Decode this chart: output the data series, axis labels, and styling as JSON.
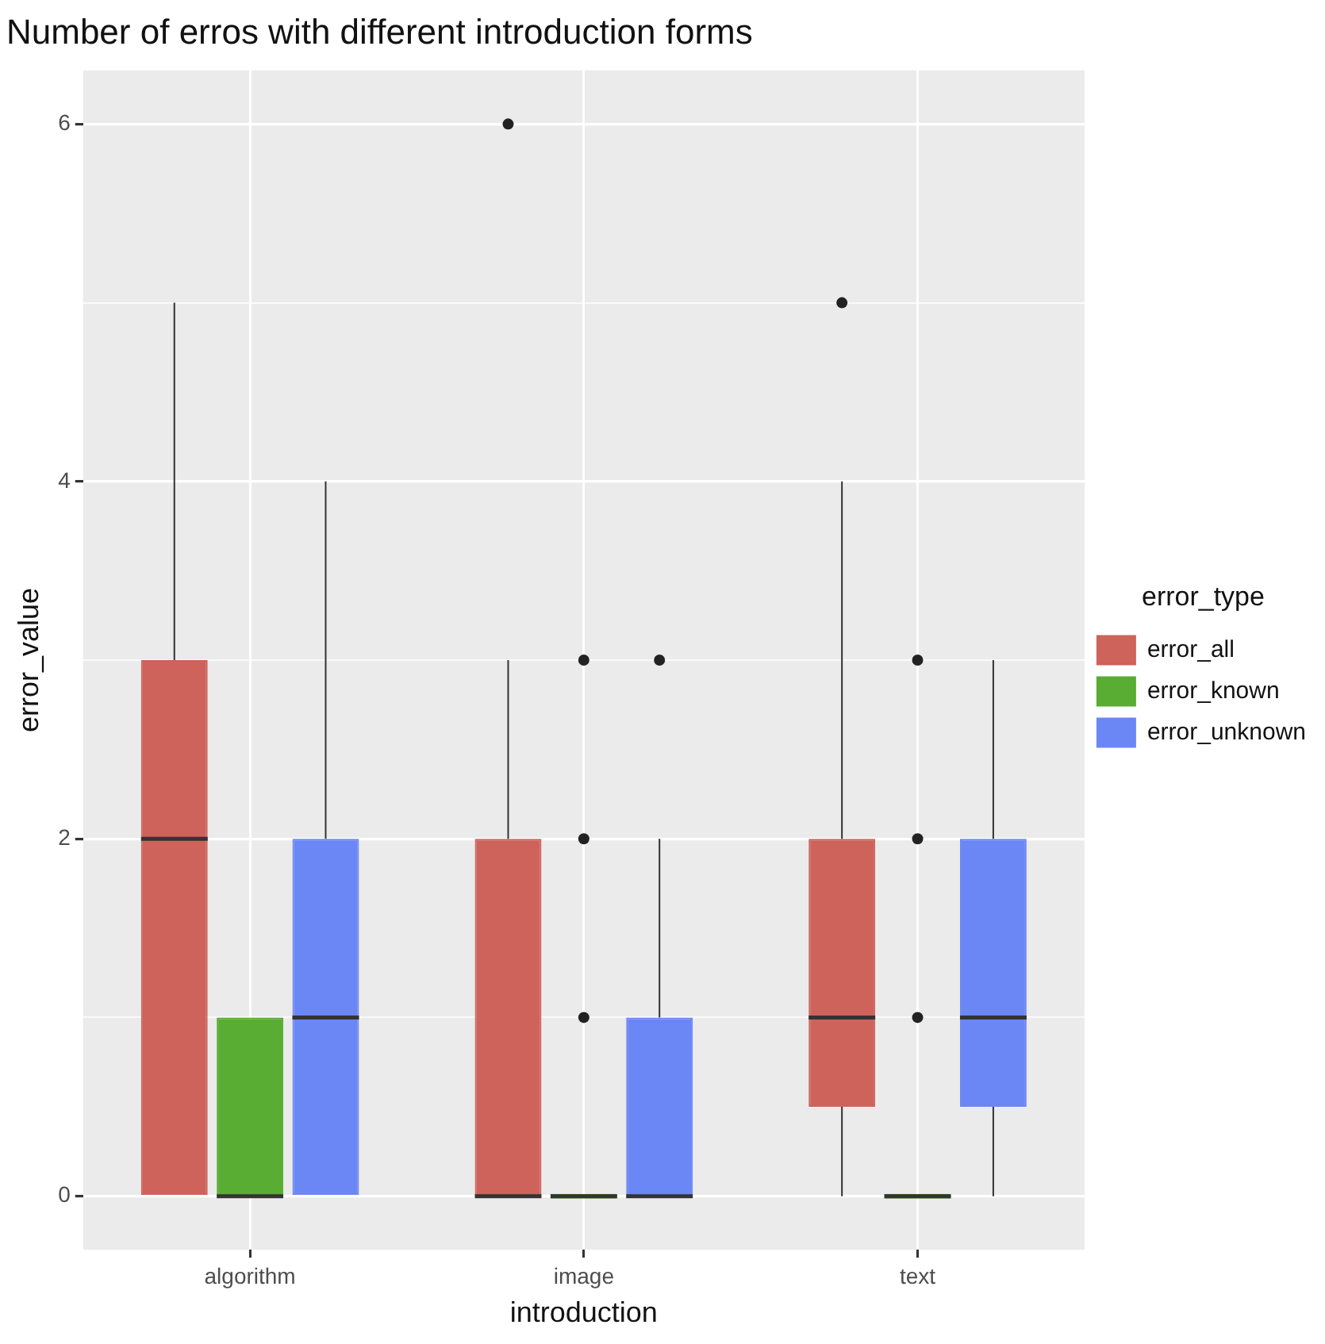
{
  "chart_data": {
    "type": "box",
    "title": "Number of erros with different introduction forms",
    "xlabel": "introduction",
    "ylabel": "error_value",
    "legend_title": "error_type",
    "legend": "right",
    "grid": true,
    "categories": [
      "algorithm",
      "image",
      "text"
    ],
    "ylim": [
      -0.3,
      6.3
    ],
    "yticks": [
      0,
      {
        "value": 1,
        "label": null
      },
      2,
      {
        "value": 3,
        "label": null
      },
      4,
      {
        "value": 5,
        "label": null
      },
      6
    ],
    "series": [
      {
        "name": "error_all",
        "color": "#cd635b",
        "boxes": [
          {
            "low": 0,
            "q1": 0,
            "median": 2,
            "q3": 3,
            "high": 5
          },
          {
            "low": 0,
            "q1": 0,
            "median": 0,
            "q3": 2,
            "high": 3,
            "outliers": [
              6
            ]
          },
          {
            "low": 0,
            "q1": 0.5,
            "median": 1,
            "q3": 2,
            "high": 4,
            "outliers": [
              5
            ]
          }
        ]
      },
      {
        "name": "error_known",
        "color": "#58ad32",
        "boxes": [
          {
            "low": 0,
            "q1": 0,
            "median": 0,
            "q3": 1,
            "high": 1
          },
          {
            "low": 0,
            "q1": 0,
            "median": 0,
            "q3": 0,
            "high": 0,
            "outliers": [
              1,
              2,
              3
            ]
          },
          {
            "low": 0,
            "q1": 0,
            "median": 0,
            "q3": 0,
            "high": 0,
            "outliers": [
              1,
              2,
              3
            ]
          }
        ]
      },
      {
        "name": "error_unknown",
        "color": "#6b86f5",
        "boxes": [
          {
            "low": 0,
            "q1": 0,
            "median": 1,
            "q3": 2,
            "high": 4
          },
          {
            "low": 0,
            "q1": 0,
            "median": 0,
            "q3": 1,
            "high": 2,
            "outliers": [
              3
            ]
          },
          {
            "low": 0,
            "q1": 0.5,
            "median": 1,
            "q3": 2,
            "high": 3
          }
        ]
      }
    ]
  }
}
